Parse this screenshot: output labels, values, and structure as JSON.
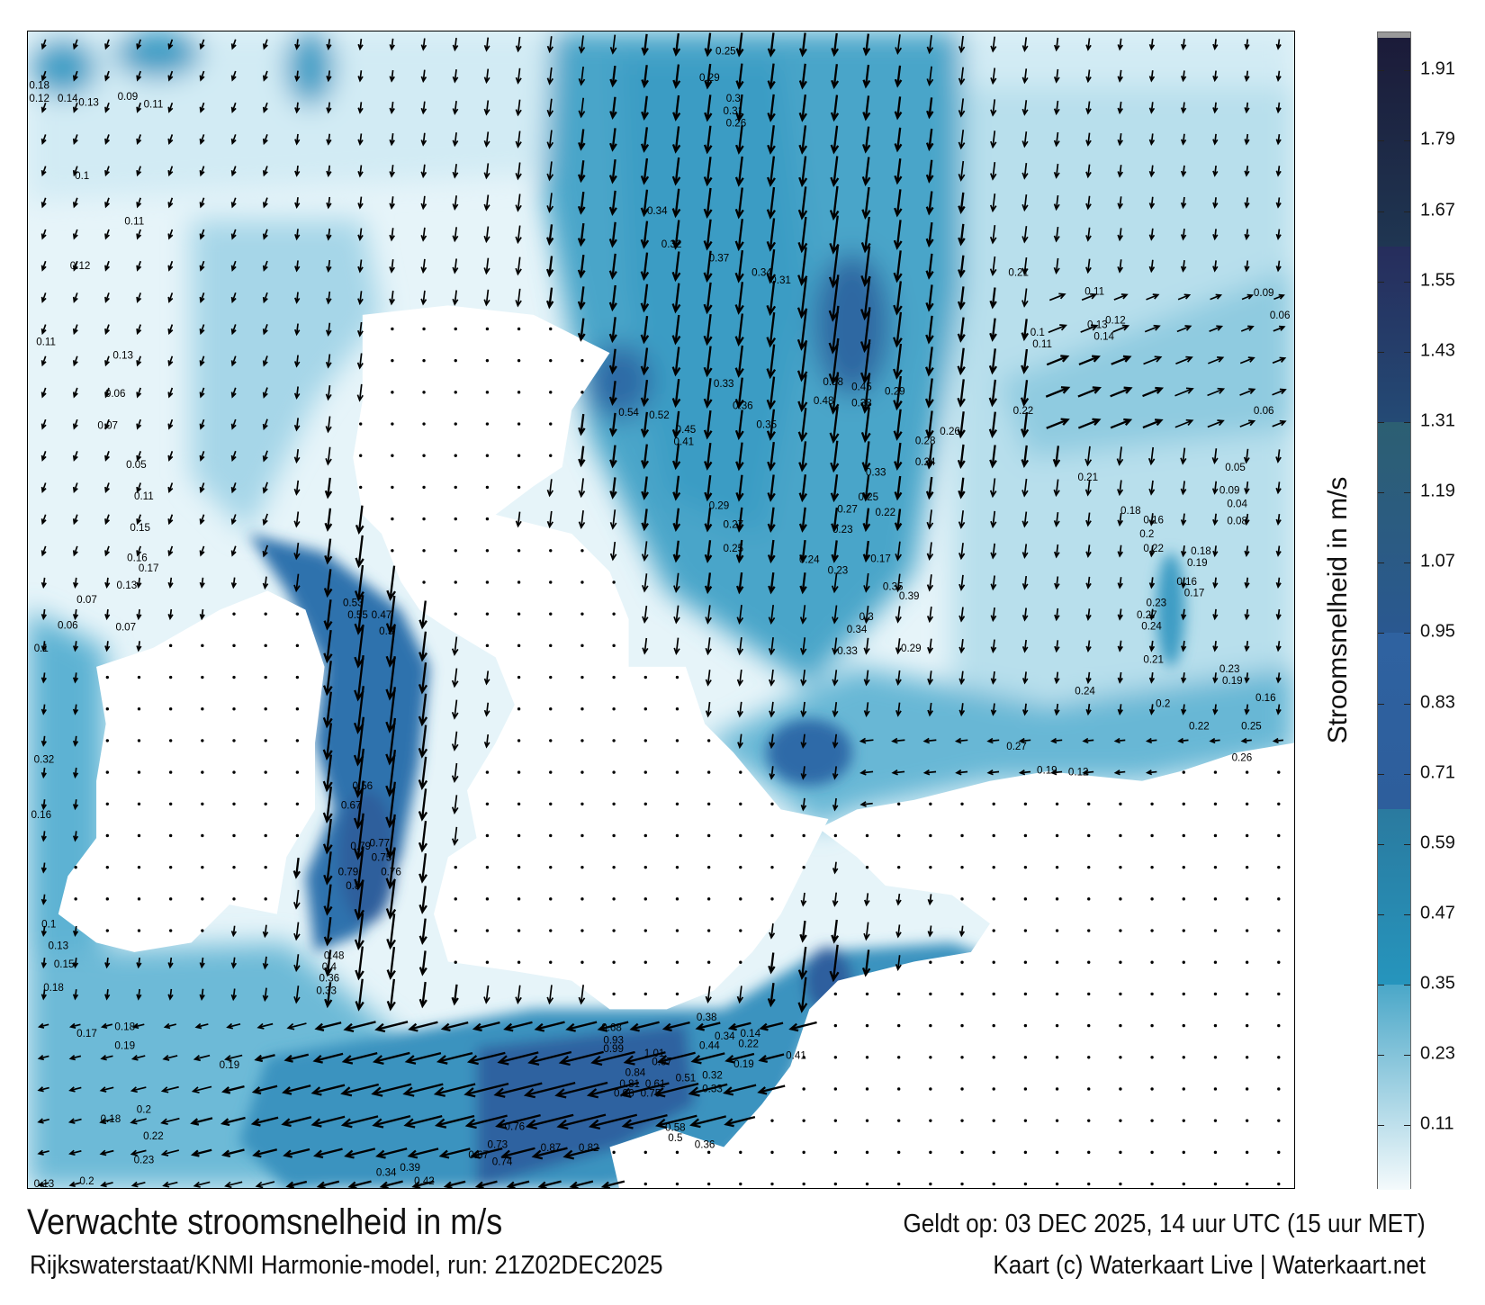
{
  "map": {
    "title": "Verwachte stroomsnelheid in m/s",
    "valid_time": "Geldt op: 03 DEC 2025, 14 uur UTC (15 uur MET)",
    "source": "Rijkswaterstaat/KNMI Harmonie-model, run: 21Z02DEC2025",
    "credit": "Kaart (c) Waterkaart Live | Waterkaart.net",
    "land_color": "#ffffff",
    "arrow_color": "#000000",
    "speed_labels": [
      "0.25",
      "0.29",
      "0.3",
      "0.31",
      "0.26",
      "0.34",
      "0.32",
      "0.37",
      "0.34",
      "0.31",
      "0.58",
      "0.45",
      "0.48",
      "0.38",
      "0.29",
      "0.54",
      "0.52",
      "0.45",
      "0.41",
      "0.33",
      "0.36",
      "0.35",
      "0.26",
      "0.28",
      "0.24",
      "0.33",
      "0.25",
      "0.27",
      "0.22",
      "0.23",
      "0.29",
      "0.27",
      "0.25",
      "0.24",
      "0.23",
      "0.17",
      "0.35",
      "0.39",
      "0.3",
      "0.34",
      "0.33",
      "0.29",
      "0.24",
      "0.2",
      "0.22",
      "0.27",
      "0.19",
      "0.12",
      "0.68",
      "0.93",
      "0.99",
      "1.01",
      "0.67",
      "0.84",
      "0.81",
      "0.61",
      "0.96",
      "0.75",
      "0.51",
      "0.32",
      "0.33",
      "0.58",
      "0.5",
      "0.36",
      "0.34",
      "0.44",
      "0.38",
      "0.22",
      "0.14",
      "0.41",
      "0.19",
      "0.79",
      "0.77",
      "0.75",
      "0.76",
      "0.79",
      "0.8",
      "0.67",
      "0.56",
      "0.53",
      "0.55",
      "0.47",
      "0.5",
      "0.48",
      "0.4",
      "0.36",
      "0.33",
      "0.18",
      "0.17",
      "0.18",
      "0.19",
      "0.19",
      "0.18",
      "0.2",
      "0.22",
      "0.23",
      "0.13",
      "0.2",
      "0.42",
      "0.34",
      "0.39",
      "0.76",
      "0.87",
      "0.82",
      "0.73",
      "0.67",
      "0.74",
      "0.18",
      "0.12",
      "0.14",
      "0.13",
      "0.09",
      "0.11",
      "0.1",
      "0.11",
      "0.12",
      "0.11",
      "0.13",
      "0.06",
      "0.07",
      "0.05",
      "0.11",
      "0.15",
      "0.16",
      "0.17",
      "0.13",
      "0.07",
      "0.06",
      "0.07",
      "0.1",
      "0.32",
      "0.16",
      "0.1",
      "0.13",
      "0.15",
      "0.11",
      "0.12",
      "0.13",
      "0.14",
      "0.1",
      "0.11",
      "0.21",
      "0.22",
      "0.21",
      "0.18",
      "0.16",
      "0.2",
      "0.22",
      "0.18",
      "0.19",
      "0.16",
      "0.17",
      "0.23",
      "0.27",
      "0.24",
      "0.21",
      "0.23",
      "0.19",
      "0.16",
      "0.25",
      "0.26",
      "0.09",
      "0.06",
      "0.06",
      "0.05",
      "0.09",
      "0.04",
      "0.08"
    ]
  },
  "colorbar": {
    "label": "Stroomsnelheid in m/s",
    "range": [
      0,
      1.975
    ],
    "ticks": [
      "1.91",
      "1.79",
      "1.67",
      "1.55",
      "1.43",
      "1.31",
      "1.19",
      "1.07",
      "0.95",
      "0.83",
      "0.71",
      "0.59",
      "0.47",
      "0.35",
      "0.23",
      "0.11"
    ],
    "bands": [
      {
        "from": 1.61,
        "to": 1.975,
        "color_low": "#1f3652",
        "color_high": "#1b1a38"
      },
      {
        "from": 1.31,
        "to": 1.61,
        "color_low": "#244a75",
        "color_high": "#262d5c"
      },
      {
        "from": 0.95,
        "to": 1.31,
        "color_low": "#2a5890",
        "color_high": "#2c5f72"
      },
      {
        "from": 0.65,
        "to": 0.95,
        "color_low": "#2d5e9c",
        "color_high": "#2f62a0"
      },
      {
        "from": 0.35,
        "to": 0.65,
        "color_low": "#2695bd",
        "color_high": "#2a7a9f"
      },
      {
        "from": 0.0,
        "to": 0.35,
        "color_low": "#f4fafc",
        "color_high": "#4aa7c8"
      }
    ]
  }
}
